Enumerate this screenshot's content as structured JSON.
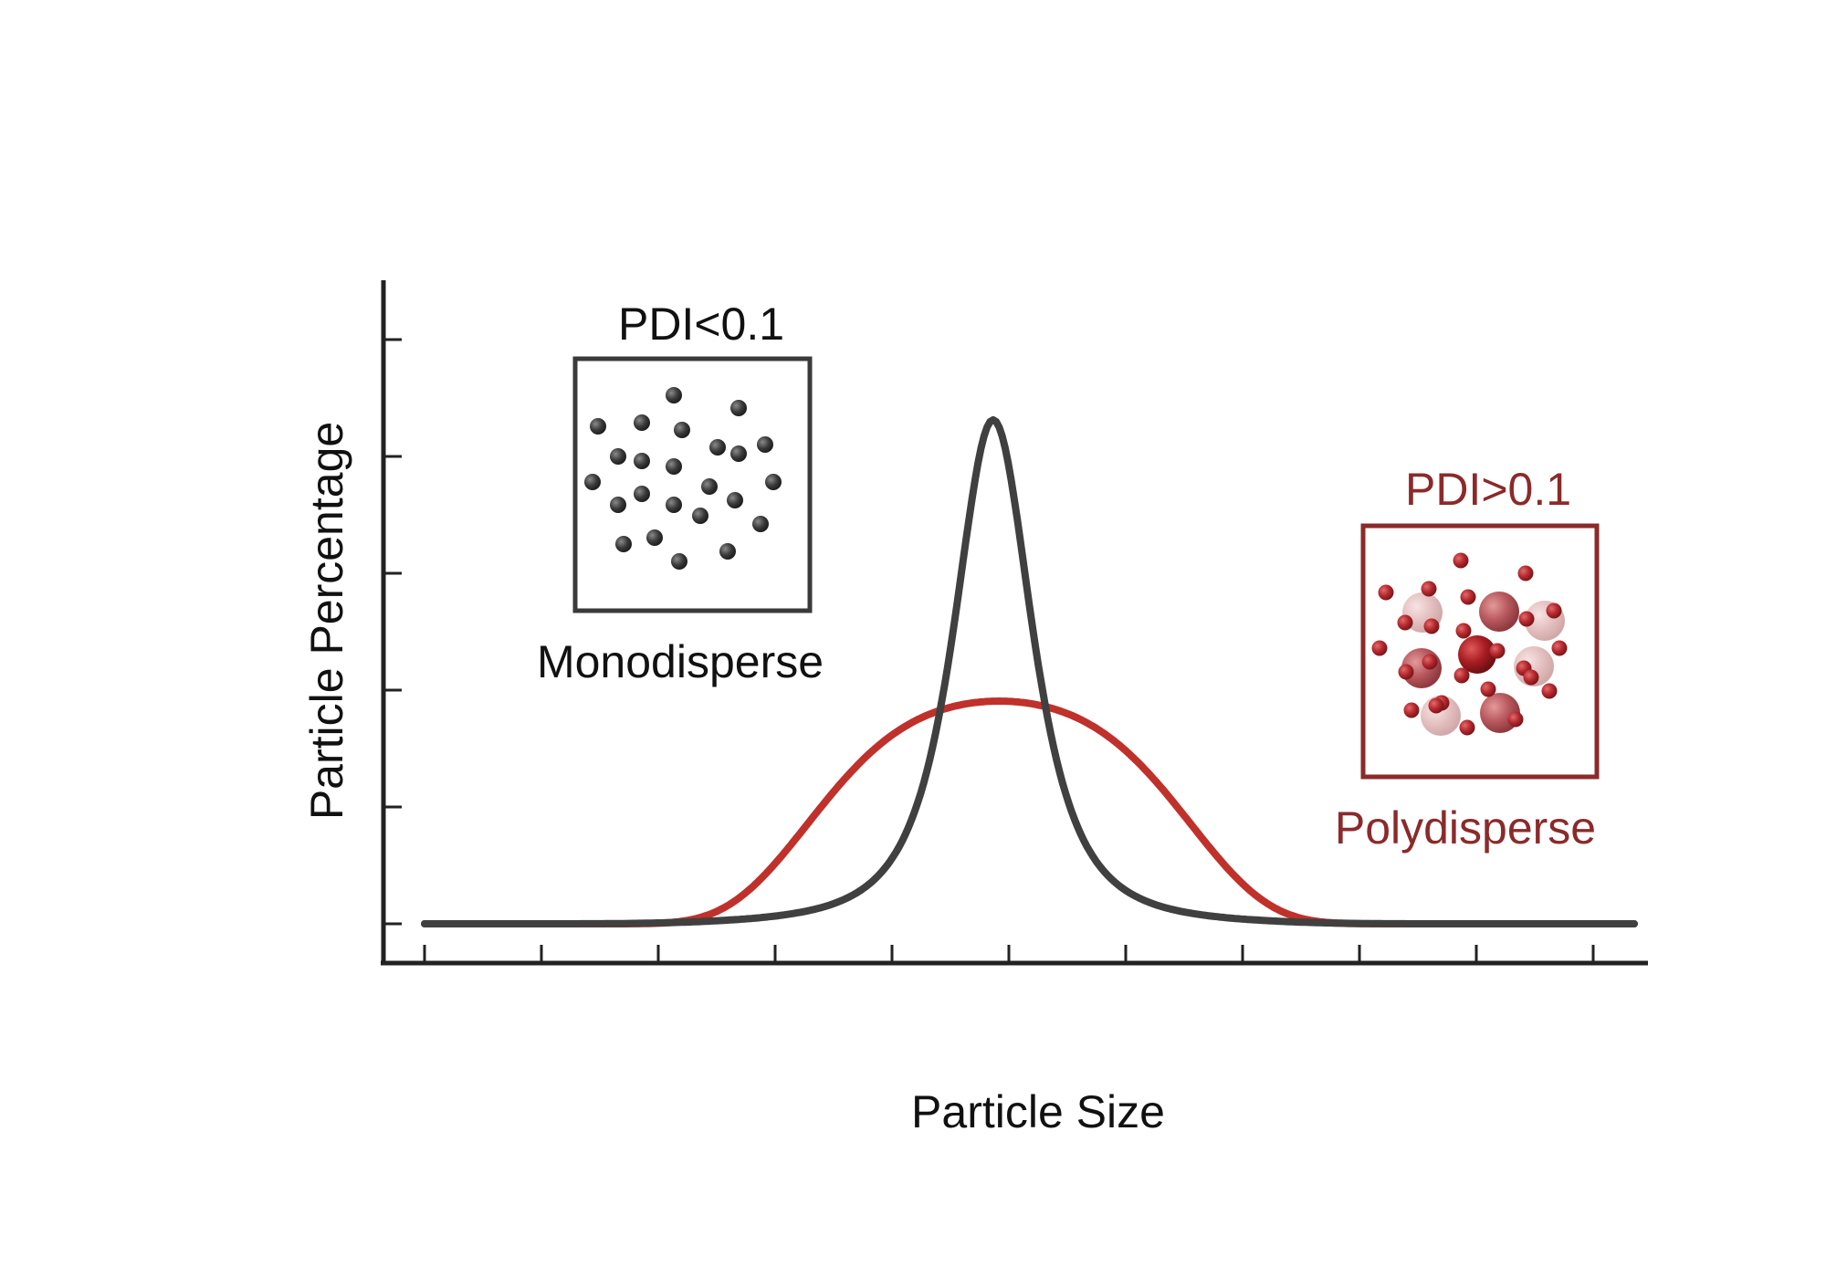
{
  "chart_data": {
    "type": "line",
    "xlabel": "Particle Size",
    "ylabel": "Particle Percentage",
    "x_tick_count": 11,
    "y_tick_count": 6,
    "series": [
      {
        "color": "#404040",
        "peak": 0.86,
        "peak_position": 0.47,
        "width": 0.052,
        "shape": "sharp"
      },
      {
        "color": "#c0312b",
        "peak": 0.38,
        "peak_position": 0.475,
        "width": 0.13,
        "shape": "broad"
      }
    ]
  },
  "insets": {
    "mono": {
      "title": "PDI<0.1",
      "caption": "Monodisperse",
      "color": "#3a3a3a"
    },
    "poly": {
      "title": "PDI>0.1",
      "caption": "Polydisperse",
      "color": "#8b2a2a",
      "particle_color": "#a8262b"
    }
  }
}
